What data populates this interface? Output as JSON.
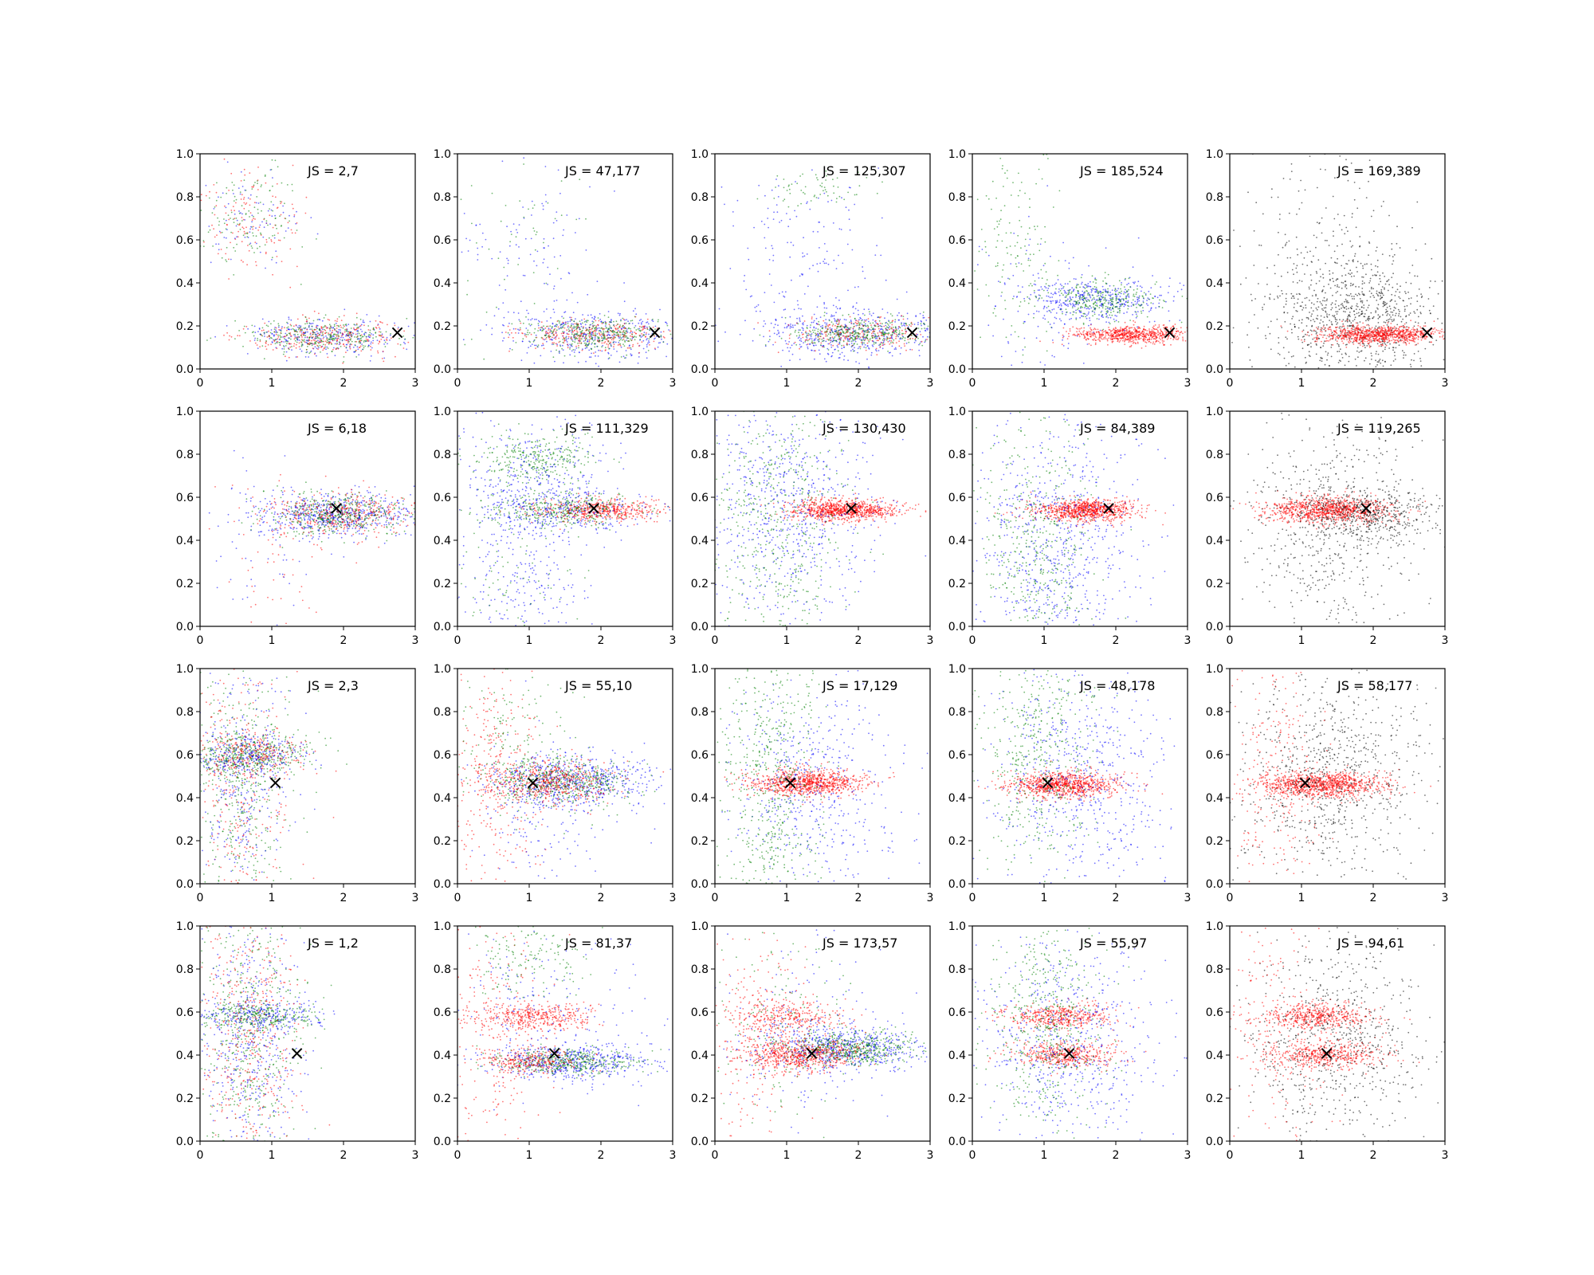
{
  "chart_data": {
    "type": "scatter",
    "grid_rows": 4,
    "grid_cols": 5,
    "xlim": [
      0,
      3
    ],
    "ylim": [
      0,
      1
    ],
    "xticks": [
      "0",
      "1",
      "2",
      "3"
    ],
    "yticks": [
      "0.0",
      "0.2",
      "0.4",
      "0.6",
      "0.8",
      "1.0"
    ],
    "grid": false,
    "colors": {
      "red": "#ff0000",
      "green": "#008000",
      "blue": "#0000ff",
      "black": "#000000"
    },
    "marker_symbol": "×",
    "panels": [
      {
        "label": "JS = 2,7",
        "marker": [
          2.75,
          0.17
        ],
        "clusters": [
          {
            "color": "blue",
            "cx": 1.7,
            "cy": 0.15,
            "sx": 0.55,
            "sy": 0.04,
            "n": 300
          },
          {
            "color": "red",
            "cx": 1.7,
            "cy": 0.15,
            "sx": 0.55,
            "sy": 0.04,
            "n": 300
          },
          {
            "color": "green",
            "cx": 1.7,
            "cy": 0.15,
            "sx": 0.5,
            "sy": 0.04,
            "n": 300
          },
          {
            "color": "red",
            "cx": 0.7,
            "cy": 0.7,
            "sx": 0.35,
            "sy": 0.12,
            "n": 130
          },
          {
            "color": "green",
            "cx": 0.7,
            "cy": 0.7,
            "sx": 0.35,
            "sy": 0.12,
            "n": 130
          },
          {
            "color": "blue",
            "cx": 0.7,
            "cy": 0.7,
            "sx": 0.35,
            "sy": 0.12,
            "n": 80
          }
        ]
      },
      {
        "label": "JS = 47,177",
        "marker": [
          2.75,
          0.17
        ],
        "clusters": [
          {
            "color": "blue",
            "cx": 1.9,
            "cy": 0.16,
            "sx": 0.6,
            "sy": 0.06,
            "n": 400
          },
          {
            "color": "red",
            "cx": 1.9,
            "cy": 0.16,
            "sx": 0.5,
            "sy": 0.035,
            "n": 300
          },
          {
            "color": "green",
            "cx": 1.9,
            "cy": 0.16,
            "sx": 0.5,
            "sy": 0.035,
            "n": 350
          },
          {
            "color": "blue",
            "cx": 0.9,
            "cy": 0.55,
            "sx": 0.5,
            "sy": 0.22,
            "n": 110
          },
          {
            "color": "green",
            "cx": 0.9,
            "cy": 0.6,
            "sx": 0.4,
            "sy": 0.2,
            "n": 50
          }
        ]
      },
      {
        "label": "JS = 125,307",
        "marker": [
          2.75,
          0.17
        ],
        "clusters": [
          {
            "color": "blue",
            "cx": 1.9,
            "cy": 0.17,
            "sx": 0.6,
            "sy": 0.06,
            "n": 500
          },
          {
            "color": "red",
            "cx": 2.0,
            "cy": 0.17,
            "sx": 0.5,
            "sy": 0.035,
            "n": 250
          },
          {
            "color": "green",
            "cx": 2.0,
            "cy": 0.17,
            "sx": 0.5,
            "sy": 0.035,
            "n": 350
          },
          {
            "color": "blue",
            "cx": 1.2,
            "cy": 0.55,
            "sx": 0.6,
            "sy": 0.2,
            "n": 150
          },
          {
            "color": "green",
            "cx": 1.3,
            "cy": 0.85,
            "sx": 0.4,
            "sy": 0.05,
            "n": 60
          }
        ]
      },
      {
        "label": "JS = 185,524",
        "marker": [
          2.75,
          0.17
        ],
        "clusters": [
          {
            "color": "red",
            "cx": 2.2,
            "cy": 0.16,
            "sx": 0.4,
            "sy": 0.02,
            "n": 700
          },
          {
            "color": "blue",
            "cx": 1.8,
            "cy": 0.32,
            "sx": 0.5,
            "sy": 0.05,
            "n": 400
          },
          {
            "color": "green",
            "cx": 1.8,
            "cy": 0.32,
            "sx": 0.4,
            "sy": 0.05,
            "n": 300
          },
          {
            "color": "green",
            "cx": 0.6,
            "cy": 0.6,
            "sx": 0.3,
            "sy": 0.25,
            "n": 150
          },
          {
            "color": "blue",
            "cx": 1.0,
            "cy": 0.3,
            "sx": 0.5,
            "sy": 0.2,
            "n": 120
          }
        ]
      },
      {
        "label": "JS = 169,389",
        "marker": [
          2.75,
          0.17
        ],
        "clusters": [
          {
            "color": "black",
            "cx": 1.7,
            "cy": 0.25,
            "sx": 0.6,
            "sy": 0.15,
            "n": 900
          },
          {
            "color": "red",
            "cx": 2.1,
            "cy": 0.16,
            "sx": 0.45,
            "sy": 0.02,
            "n": 900
          },
          {
            "color": "black",
            "cx": 1.2,
            "cy": 0.6,
            "sx": 0.6,
            "sy": 0.2,
            "n": 150
          }
        ]
      },
      {
        "label": "JS = 6,18",
        "marker": [
          1.9,
          0.55
        ],
        "clusters": [
          {
            "color": "blue",
            "cx": 1.9,
            "cy": 0.52,
            "sx": 0.55,
            "sy": 0.05,
            "n": 600
          },
          {
            "color": "red",
            "cx": 1.9,
            "cy": 0.52,
            "sx": 0.5,
            "sy": 0.05,
            "n": 400
          },
          {
            "color": "green",
            "cx": 1.9,
            "cy": 0.52,
            "sx": 0.5,
            "sy": 0.05,
            "n": 400
          },
          {
            "color": "red",
            "cx": 1.0,
            "cy": 0.3,
            "sx": 0.4,
            "sy": 0.2,
            "n": 60
          },
          {
            "color": "blue",
            "cx": 1.0,
            "cy": 0.35,
            "sx": 0.4,
            "sy": 0.2,
            "n": 60
          }
        ]
      },
      {
        "label": "JS = 111,329",
        "marker": [
          1.9,
          0.55
        ],
        "clusters": [
          {
            "color": "red",
            "cx": 2.0,
            "cy": 0.54,
            "sx": 0.45,
            "sy": 0.025,
            "n": 500
          },
          {
            "color": "green",
            "cx": 1.4,
            "cy": 0.54,
            "sx": 0.5,
            "sy": 0.04,
            "n": 350
          },
          {
            "color": "blue",
            "cx": 1.4,
            "cy": 0.54,
            "sx": 0.6,
            "sy": 0.06,
            "n": 300
          },
          {
            "color": "green",
            "cx": 1.1,
            "cy": 0.78,
            "sx": 0.4,
            "sy": 0.06,
            "n": 300
          },
          {
            "color": "blue",
            "cx": 1.1,
            "cy": 0.7,
            "sx": 0.55,
            "sy": 0.15,
            "n": 300
          },
          {
            "color": "blue",
            "cx": 0.9,
            "cy": 0.2,
            "sx": 0.5,
            "sy": 0.15,
            "n": 200
          },
          {
            "color": "green",
            "cx": 0.8,
            "cy": 0.25,
            "sx": 0.4,
            "sy": 0.15,
            "n": 80
          }
        ]
      },
      {
        "label": "JS = 130,430",
        "marker": [
          1.9,
          0.55
        ],
        "clusters": [
          {
            "color": "red",
            "cx": 1.8,
            "cy": 0.54,
            "sx": 0.35,
            "sy": 0.025,
            "n": 900
          },
          {
            "color": "blue",
            "cx": 1.0,
            "cy": 0.55,
            "sx": 0.6,
            "sy": 0.28,
            "n": 700
          },
          {
            "color": "green",
            "cx": 0.9,
            "cy": 0.5,
            "sx": 0.45,
            "sy": 0.28,
            "n": 500
          }
        ]
      },
      {
        "label": "JS = 84,389",
        "marker": [
          1.9,
          0.55
        ],
        "clusters": [
          {
            "color": "red",
            "cx": 1.6,
            "cy": 0.54,
            "sx": 0.35,
            "sy": 0.025,
            "n": 900
          },
          {
            "color": "blue",
            "cx": 1.2,
            "cy": 0.4,
            "sx": 0.55,
            "sy": 0.28,
            "n": 700
          },
          {
            "color": "green",
            "cx": 0.9,
            "cy": 0.4,
            "sx": 0.4,
            "sy": 0.3,
            "n": 450
          }
        ]
      },
      {
        "label": "JS = 119,265",
        "marker": [
          1.9,
          0.55
        ],
        "clusters": [
          {
            "color": "red",
            "cx": 1.4,
            "cy": 0.54,
            "sx": 0.45,
            "sy": 0.03,
            "n": 1000
          },
          {
            "color": "black",
            "cx": 1.9,
            "cy": 0.52,
            "sx": 0.5,
            "sy": 0.07,
            "n": 500
          },
          {
            "color": "black",
            "cx": 1.3,
            "cy": 0.45,
            "sx": 0.6,
            "sy": 0.28,
            "n": 500
          }
        ]
      },
      {
        "label": "JS = 2,3",
        "marker": [
          1.05,
          0.47
        ],
        "clusters": [
          {
            "color": "green",
            "cx": 0.7,
            "cy": 0.6,
            "sx": 0.4,
            "sy": 0.05,
            "n": 400
          },
          {
            "color": "red",
            "cx": 0.7,
            "cy": 0.6,
            "sx": 0.4,
            "sy": 0.05,
            "n": 250
          },
          {
            "color": "blue",
            "cx": 0.7,
            "cy": 0.6,
            "sx": 0.4,
            "sy": 0.05,
            "n": 250
          },
          {
            "color": "green",
            "cx": 0.6,
            "cy": 0.45,
            "sx": 0.35,
            "sy": 0.3,
            "n": 400
          },
          {
            "color": "red",
            "cx": 0.6,
            "cy": 0.45,
            "sx": 0.35,
            "sy": 0.3,
            "n": 300
          },
          {
            "color": "blue",
            "cx": 0.6,
            "cy": 0.45,
            "sx": 0.35,
            "sy": 0.3,
            "n": 300
          }
        ]
      },
      {
        "label": "JS = 55,10",
        "marker": [
          1.05,
          0.47
        ],
        "clusters": [
          {
            "color": "blue",
            "cx": 1.6,
            "cy": 0.47,
            "sx": 0.55,
            "sy": 0.06,
            "n": 600
          },
          {
            "color": "green",
            "cx": 1.5,
            "cy": 0.47,
            "sx": 0.5,
            "sy": 0.05,
            "n": 500
          },
          {
            "color": "red",
            "cx": 1.3,
            "cy": 0.47,
            "sx": 0.45,
            "sy": 0.05,
            "n": 500
          },
          {
            "color": "red",
            "cx": 0.5,
            "cy": 0.5,
            "sx": 0.3,
            "sy": 0.28,
            "n": 300
          },
          {
            "color": "green",
            "cx": 0.8,
            "cy": 0.7,
            "sx": 0.4,
            "sy": 0.2,
            "n": 150
          },
          {
            "color": "blue",
            "cx": 1.2,
            "cy": 0.3,
            "sx": 0.5,
            "sy": 0.2,
            "n": 150
          }
        ]
      },
      {
        "label": "JS = 17,129",
        "marker": [
          1.05,
          0.47
        ],
        "clusters": [
          {
            "color": "red",
            "cx": 1.3,
            "cy": 0.47,
            "sx": 0.4,
            "sy": 0.03,
            "n": 900
          },
          {
            "color": "blue",
            "cx": 1.3,
            "cy": 0.45,
            "sx": 0.6,
            "sy": 0.25,
            "n": 500
          },
          {
            "color": "green",
            "cx": 0.8,
            "cy": 0.6,
            "sx": 0.35,
            "sy": 0.25,
            "n": 400
          },
          {
            "color": "green",
            "cx": 0.8,
            "cy": 0.15,
            "sx": 0.35,
            "sy": 0.1,
            "n": 150
          }
        ]
      },
      {
        "label": "JS = 48,178",
        "marker": [
          1.05,
          0.47
        ],
        "clusters": [
          {
            "color": "red",
            "cx": 1.3,
            "cy": 0.46,
            "sx": 0.4,
            "sy": 0.03,
            "n": 900
          },
          {
            "color": "blue",
            "cx": 1.5,
            "cy": 0.45,
            "sx": 0.6,
            "sy": 0.25,
            "n": 600
          },
          {
            "color": "green",
            "cx": 0.9,
            "cy": 0.6,
            "sx": 0.4,
            "sy": 0.25,
            "n": 450
          }
        ]
      },
      {
        "label": "JS = 58,177",
        "marker": [
          1.05,
          0.47
        ],
        "clusters": [
          {
            "color": "red",
            "cx": 1.3,
            "cy": 0.46,
            "sx": 0.45,
            "sy": 0.03,
            "n": 1000
          },
          {
            "color": "black",
            "cx": 1.4,
            "cy": 0.5,
            "sx": 0.65,
            "sy": 0.25,
            "n": 800
          },
          {
            "color": "red",
            "cx": 0.6,
            "cy": 0.5,
            "sx": 0.35,
            "sy": 0.28,
            "n": 250
          }
        ]
      },
      {
        "label": "JS = 1,2",
        "marker": [
          1.35,
          0.41
        ],
        "clusters": [
          {
            "color": "green",
            "cx": 0.8,
            "cy": 0.58,
            "sx": 0.45,
            "sy": 0.03,
            "n": 250
          },
          {
            "color": "blue",
            "cx": 0.8,
            "cy": 0.58,
            "sx": 0.45,
            "sy": 0.03,
            "n": 200
          },
          {
            "color": "green",
            "cx": 0.7,
            "cy": 0.5,
            "sx": 0.35,
            "sy": 0.3,
            "n": 500
          },
          {
            "color": "red",
            "cx": 0.7,
            "cy": 0.5,
            "sx": 0.35,
            "sy": 0.3,
            "n": 450
          },
          {
            "color": "blue",
            "cx": 0.7,
            "cy": 0.5,
            "sx": 0.35,
            "sy": 0.3,
            "n": 450
          }
        ]
      },
      {
        "label": "JS = 81,37",
        "marker": [
          1.35,
          0.41
        ],
        "clusters": [
          {
            "color": "red",
            "cx": 1.1,
            "cy": 0.58,
            "sx": 0.4,
            "sy": 0.03,
            "n": 400
          },
          {
            "color": "blue",
            "cx": 1.6,
            "cy": 0.37,
            "sx": 0.55,
            "sy": 0.04,
            "n": 500
          },
          {
            "color": "green",
            "cx": 1.5,
            "cy": 0.37,
            "sx": 0.5,
            "sy": 0.03,
            "n": 400
          },
          {
            "color": "red",
            "cx": 1.0,
            "cy": 0.37,
            "sx": 0.35,
            "sy": 0.03,
            "n": 250
          },
          {
            "color": "red",
            "cx": 0.5,
            "cy": 0.5,
            "sx": 0.35,
            "sy": 0.3,
            "n": 250
          },
          {
            "color": "green",
            "cx": 1.0,
            "cy": 0.85,
            "sx": 0.4,
            "sy": 0.1,
            "n": 150
          },
          {
            "color": "blue",
            "cx": 1.2,
            "cy": 0.6,
            "sx": 0.6,
            "sy": 0.2,
            "n": 200
          }
        ]
      },
      {
        "label": "JS = 173,57",
        "marker": [
          1.35,
          0.41
        ],
        "clusters": [
          {
            "color": "blue",
            "cx": 1.8,
            "cy": 0.43,
            "sx": 0.6,
            "sy": 0.05,
            "n": 600
          },
          {
            "color": "green",
            "cx": 1.9,
            "cy": 0.43,
            "sx": 0.45,
            "sy": 0.04,
            "n": 500
          },
          {
            "color": "red",
            "cx": 1.2,
            "cy": 0.4,
            "sx": 0.4,
            "sy": 0.035,
            "n": 600
          },
          {
            "color": "red",
            "cx": 1.0,
            "cy": 0.58,
            "sx": 0.4,
            "sy": 0.04,
            "n": 300
          },
          {
            "color": "red",
            "cx": 0.6,
            "cy": 0.5,
            "sx": 0.35,
            "sy": 0.25,
            "n": 250
          },
          {
            "color": "green",
            "cx": 0.8,
            "cy": 0.55,
            "sx": 0.5,
            "sy": 0.25,
            "n": 150
          },
          {
            "color": "blue",
            "cx": 1.2,
            "cy": 0.55,
            "sx": 0.6,
            "sy": 0.25,
            "n": 150
          }
        ]
      },
      {
        "label": "JS = 55,97",
        "marker": [
          1.35,
          0.41
        ],
        "clusters": [
          {
            "color": "red",
            "cx": 1.2,
            "cy": 0.58,
            "sx": 0.35,
            "sy": 0.03,
            "n": 450
          },
          {
            "color": "red",
            "cx": 1.3,
            "cy": 0.4,
            "sx": 0.35,
            "sy": 0.03,
            "n": 450
          },
          {
            "color": "blue",
            "cx": 1.3,
            "cy": 0.45,
            "sx": 0.6,
            "sy": 0.25,
            "n": 600
          },
          {
            "color": "green",
            "cx": 1.0,
            "cy": 0.55,
            "sx": 0.4,
            "sy": 0.25,
            "n": 500
          }
        ]
      },
      {
        "label": "JS = 94,61",
        "marker": [
          1.35,
          0.41
        ],
        "clusters": [
          {
            "color": "red",
            "cx": 1.2,
            "cy": 0.58,
            "sx": 0.4,
            "sy": 0.03,
            "n": 500
          },
          {
            "color": "red",
            "cx": 1.3,
            "cy": 0.4,
            "sx": 0.4,
            "sy": 0.03,
            "n": 500
          },
          {
            "color": "black",
            "cx": 1.5,
            "cy": 0.45,
            "sx": 0.65,
            "sy": 0.25,
            "n": 700
          },
          {
            "color": "red",
            "cx": 0.6,
            "cy": 0.55,
            "sx": 0.35,
            "sy": 0.3,
            "n": 200
          }
        ]
      }
    ]
  }
}
